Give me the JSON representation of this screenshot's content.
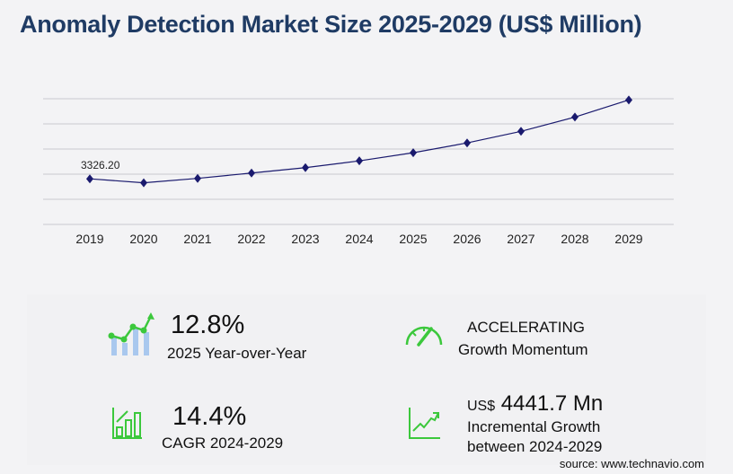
{
  "title": "Anomaly Detection Market Size 2025-2029 (US$ Million)",
  "chart_data": {
    "type": "line",
    "title": "Anomaly Detection Market Size 2025-2029 (US$ Million)",
    "categories": [
      "2019",
      "2020",
      "2021",
      "2022",
      "2023",
      "2024",
      "2025",
      "2026",
      "2027",
      "2028",
      "2029"
    ],
    "values": [
      3326.2,
      3034,
      3359,
      3749,
      4139,
      4636,
      5229,
      5944,
      6789,
      7829,
      9078
    ],
    "data_labels": [
      {
        "category": "2019",
        "text": "3326.20"
      }
    ],
    "ylim": [
      0,
      9100
    ],
    "grid": true,
    "line_color": "#1a1a6e",
    "xlabel": "",
    "ylabel": ""
  },
  "stats": {
    "yoy_value": "12.8%",
    "yoy_label": "2025 Year-over-Year",
    "momentum_value": "ACCELERATING",
    "momentum_label": "Growth Momentum",
    "cagr_value": "14.4%",
    "cagr_label": "CAGR 2024-2029",
    "incremental_prefix": "US$",
    "incremental_value": "4441.7 Mn",
    "incremental_label1": "Incremental Growth",
    "incremental_label2": "between 2024-2029"
  },
  "icons": [
    "bar-line-chart-icon",
    "speedometer-icon",
    "bar-growth-icon",
    "line-growth-icon"
  ],
  "accent_color": "#3cc83c",
  "source": "source: www.technavio.com"
}
